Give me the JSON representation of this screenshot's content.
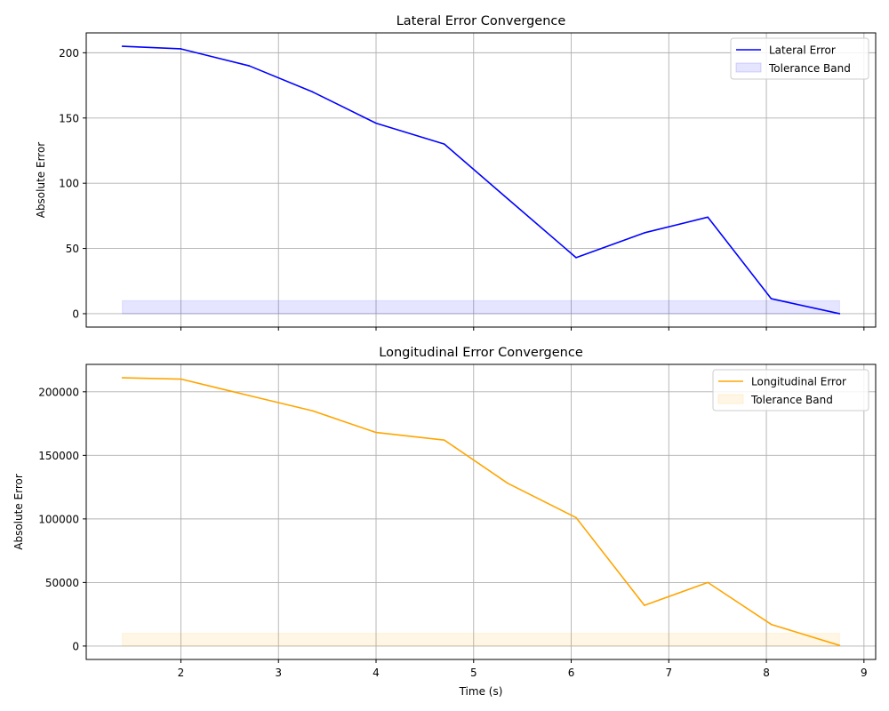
{
  "chart_data": [
    {
      "type": "line",
      "title": "Lateral Error Convergence",
      "xlabel": "",
      "ylabel": "Absolute Error",
      "xlim": [
        1.03,
        9.12
      ],
      "ylim": [
        -10.25,
        215.25
      ],
      "x_ticks": [
        2,
        3,
        4,
        5,
        6,
        7,
        8,
        9
      ],
      "x_tick_labels_visible": false,
      "y_ticks": [
        0,
        50,
        100,
        150,
        200
      ],
      "y_tick_labels": [
        "0",
        "50",
        "100",
        "150",
        "200"
      ],
      "grid": true,
      "legend_position": "top-right",
      "series": [
        {
          "name": "Lateral Error",
          "color": "#0000ff",
          "x": [
            1.4,
            2.0,
            2.7,
            3.35,
            4.0,
            4.7,
            5.35,
            6.05,
            6.75,
            7.4,
            8.05,
            8.75
          ],
          "values": [
            205,
            203,
            190,
            170,
            146,
            130,
            88,
            43,
            62,
            74,
            11.5,
            0
          ]
        }
      ],
      "band": {
        "name": "Tolerance Band",
        "color": "#0000ff",
        "x_range": [
          1.4,
          8.75
        ],
        "y_range": [
          0,
          10
        ]
      }
    },
    {
      "type": "line",
      "title": "Longitudinal Error Convergence",
      "xlabel": "Time (s)",
      "ylabel": "Absolute Error",
      "xlim": [
        1.03,
        9.12
      ],
      "ylim": [
        -10550,
        221550
      ],
      "x_ticks": [
        2,
        3,
        4,
        5,
        6,
        7,
        8,
        9
      ],
      "x_tick_labels": [
        "2",
        "3",
        "4",
        "5",
        "6",
        "7",
        "8",
        "9"
      ],
      "x_tick_labels_visible": true,
      "y_ticks": [
        0,
        50000,
        100000,
        150000,
        200000
      ],
      "y_tick_labels": [
        "0",
        "50000",
        "100000",
        "150000",
        "200000"
      ],
      "grid": true,
      "legend_position": "top-right",
      "series": [
        {
          "name": "Longitudinal Error",
          "color": "#ffa500",
          "x": [
            1.4,
            2.0,
            2.7,
            3.35,
            4.0,
            4.7,
            5.35,
            6.05,
            6.75,
            7.4,
            8.05,
            8.75
          ],
          "values": [
            211000,
            210000,
            197000,
            185000,
            168000,
            162000,
            128000,
            101000,
            32000,
            50000,
            17000,
            500
          ]
        }
      ],
      "band": {
        "name": "Tolerance Band",
        "color": "#ffa500",
        "x_range": [
          1.4,
          8.75
        ],
        "y_range": [
          0,
          10000
        ]
      }
    }
  ]
}
